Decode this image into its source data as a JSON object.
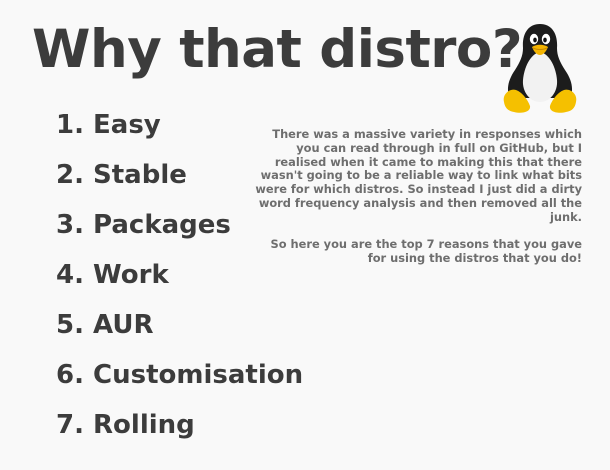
{
  "title": "Why that distro?",
  "logo_icon": "tux-penguin-icon",
  "reasons": [
    "1. Easy",
    "2. Stable",
    "3. Packages",
    "4. Work",
    "5. AUR",
    "6. Customisation",
    "7. Rolling"
  ],
  "description": {
    "paragraph_1": "There was a massive variety in responses which you can read through in full on GitHub, but I realised when it came to making this that there wasn't going to be a reliable way to link what bits were for which distros. So instead I just did a dirty word frequency analysis and then removed all the junk.",
    "paragraph_2": "So here you are the top 7 reasons that you gave for using the distros that you do!"
  },
  "colors": {
    "background": "#f9f9f9",
    "heading_text": "#3c3c3c",
    "body_text": "#6e6e6e"
  }
}
